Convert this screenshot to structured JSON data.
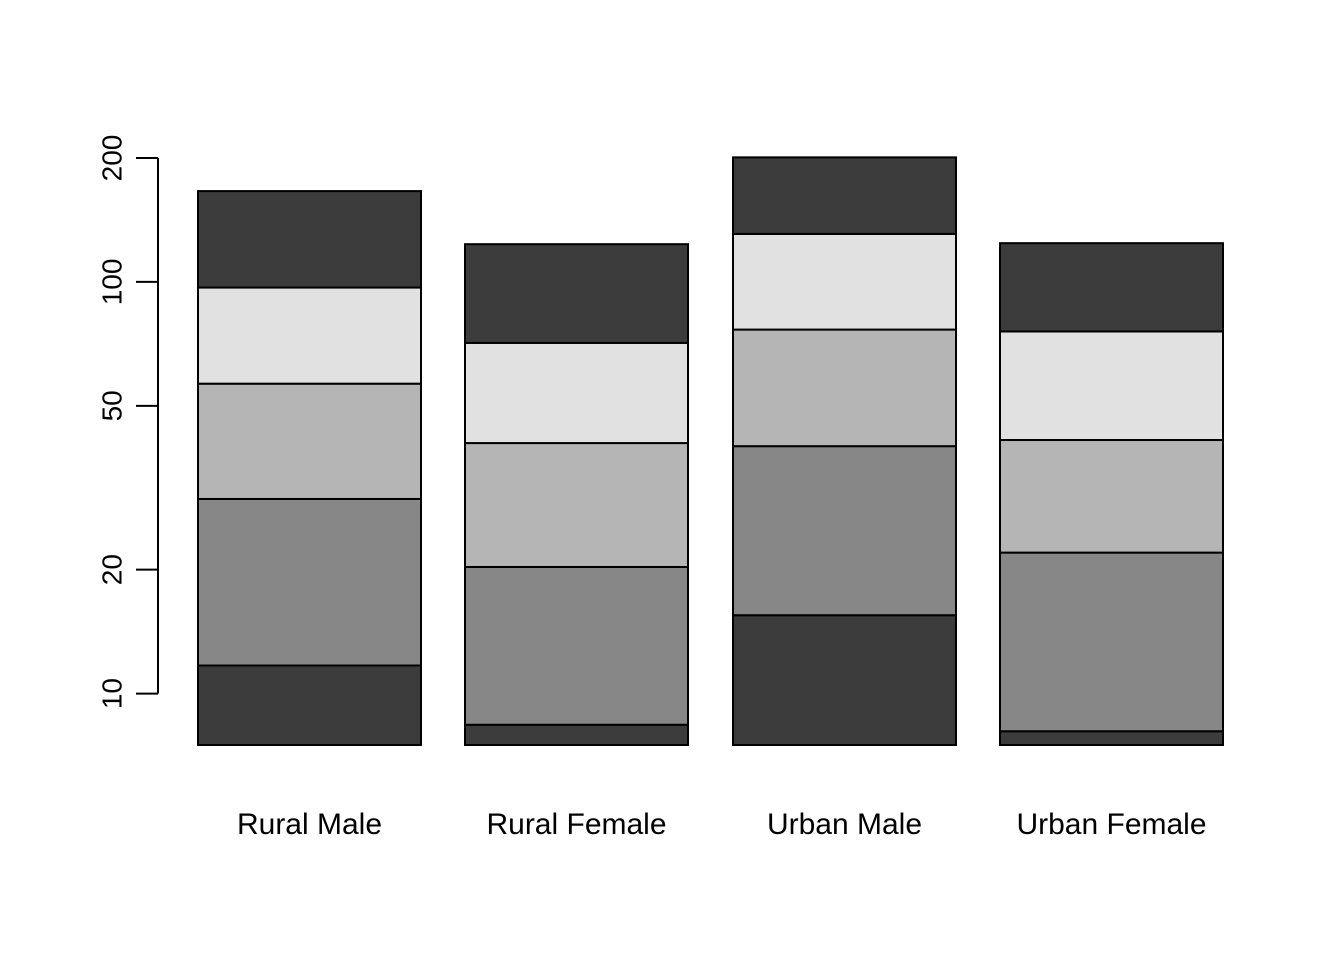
{
  "chart_data": {
    "type": "bar",
    "stacked": true,
    "y_scale": "log",
    "ylim": [
      7.5,
      200
    ],
    "yticks": [
      10,
      20,
      50,
      100,
      200
    ],
    "ytick_labels": [
      "10",
      "20",
      "50",
      "100",
      "200"
    ],
    "categories": [
      "Rural Male",
      "Rural Female",
      "Urban Male",
      "Urban Female"
    ],
    "cumulative_boundaries": [
      [
        11.7,
        29.7,
        56.6,
        96.9,
        166.2
      ],
      [
        8.4,
        20.3,
        40.6,
        71.1,
        123.5
      ],
      [
        15.5,
        39.9,
        76.6,
        130.8,
        200.7
      ],
      [
        8.1,
        22.0,
        41.3,
        75.8,
        124.2
      ]
    ],
    "segment_colors": [
      "#3c3c3c",
      "#878787",
      "#b5b5b5",
      "#e1e1e1",
      "#3c3c3c"
    ],
    "grid": false,
    "legend": "none"
  }
}
